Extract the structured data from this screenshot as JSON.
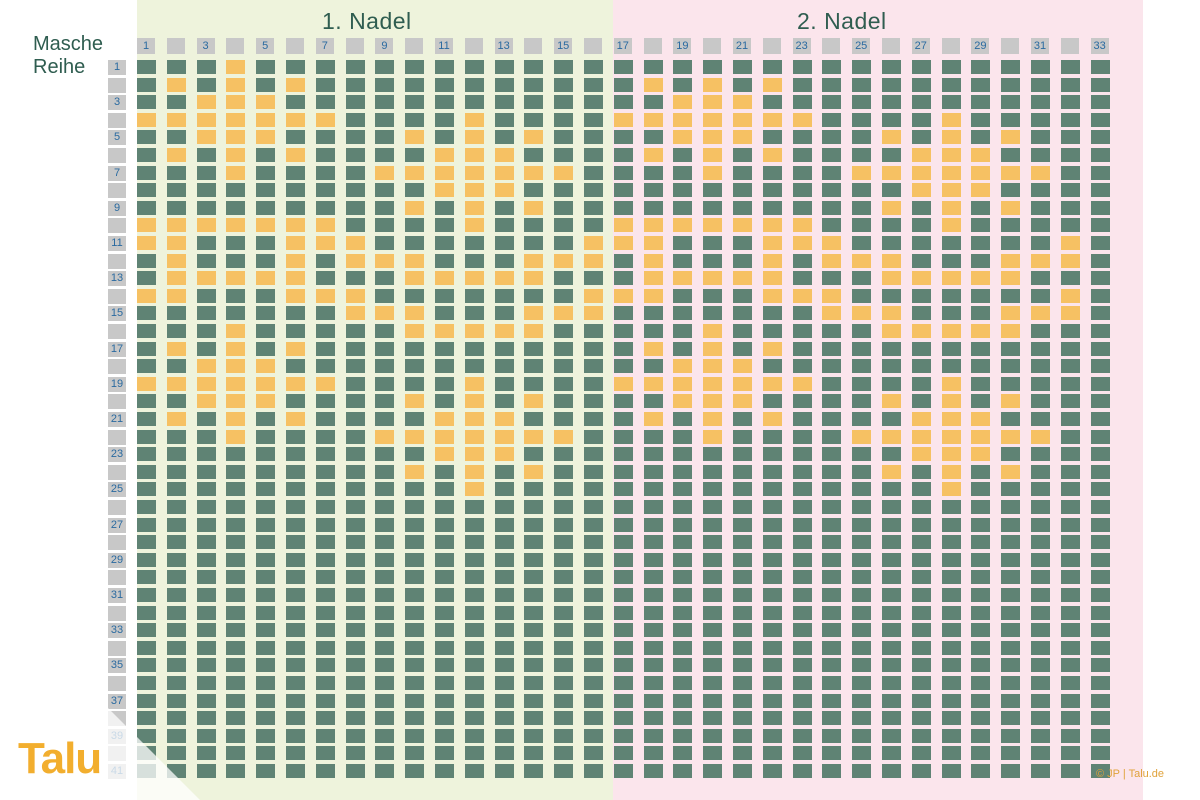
{
  "needle1_title": "1. Nadel",
  "needle2_title": "2. Nadel",
  "stitch_label": "Masche",
  "row_label": "Reihe",
  "logo": "Talu",
  "credit": "© JP | Talu.de",
  "colors": {
    "needle1_bg": "#eef3dc",
    "needle2_bg": "#fbe5ec",
    "stitch": "#5f8374",
    "highlight": "#f6c163",
    "header": "#c8c8c8"
  },
  "grid": {
    "stitch_count": 33,
    "row_count": 41,
    "stitch_numbers": [
      "1",
      "",
      "3",
      "",
      "5",
      "",
      "7",
      "",
      "9",
      "",
      "11",
      "",
      "13",
      "",
      "15",
      "",
      "17",
      "",
      "19",
      "",
      "21",
      "",
      "23",
      "",
      "25",
      "",
      "27",
      "",
      "29",
      "",
      "31",
      "",
      "33"
    ],
    "row_numbers": [
      "1",
      "",
      "3",
      "",
      "5",
      "",
      "7",
      "",
      "9",
      "",
      "11",
      "",
      "13",
      "",
      "15",
      "",
      "17",
      "",
      "19",
      "",
      "21",
      "",
      "23",
      "",
      "25",
      "",
      "27",
      "",
      "29",
      "",
      "31",
      "",
      "33",
      "",
      "35",
      "",
      "37",
      "",
      "39",
      "",
      "41"
    ],
    "highlighted": {
      "1": [
        4
      ],
      "2": [
        2,
        4,
        6,
        18,
        20,
        22
      ],
      "3": [
        3,
        4,
        5,
        19,
        20,
        21
      ],
      "4": [
        1,
        2,
        3,
        4,
        5,
        6,
        7,
        12,
        17,
        18,
        19,
        20,
        21,
        22,
        23,
        28
      ],
      "5": [
        3,
        4,
        5,
        10,
        12,
        14,
        19,
        20,
        21,
        26,
        28,
        30
      ],
      "6": [
        2,
        4,
        6,
        11,
        12,
        13,
        18,
        20,
        22,
        27,
        28,
        29
      ],
      "7": [
        4,
        9,
        10,
        11,
        12,
        13,
        14,
        15,
        20,
        25,
        26,
        27,
        28,
        29,
        30,
        31
      ],
      "8": [
        11,
        12,
        13,
        27,
        28,
        29
      ],
      "9": [
        10,
        12,
        14,
        26,
        28,
        30
      ],
      "10": [
        1,
        2,
        3,
        4,
        5,
        6,
        7,
        12,
        17,
        18,
        19,
        20,
        21,
        22,
        23,
        28
      ],
      "11": [
        1,
        2,
        6,
        7,
        8,
        16,
        17,
        18,
        22,
        23,
        24,
        32
      ],
      "12": [
        2,
        6,
        8,
        9,
        10,
        14,
        15,
        16,
        18,
        22,
        24,
        25,
        26,
        30,
        31,
        32
      ],
      "13": [
        2,
        3,
        4,
        5,
        6,
        10,
        11,
        12,
        13,
        14,
        18,
        19,
        20,
        21,
        22,
        26,
        27,
        28,
        29,
        30
      ],
      "14": [
        1,
        2,
        6,
        7,
        8,
        16,
        17,
        18,
        22,
        23,
        24,
        32
      ],
      "15": [
        8,
        9,
        10,
        14,
        15,
        16,
        24,
        25,
        26,
        30,
        31,
        32
      ],
      "16": [
        4,
        10,
        11,
        12,
        13,
        14,
        20,
        26,
        27,
        28,
        29,
        30
      ],
      "17": [
        2,
        4,
        6,
        18,
        20,
        22
      ],
      "18": [
        3,
        4,
        5,
        19,
        20,
        21
      ],
      "19": [
        1,
        2,
        3,
        4,
        5,
        6,
        7,
        12,
        17,
        18,
        19,
        20,
        21,
        22,
        23,
        28
      ],
      "20": [
        3,
        4,
        5,
        10,
        12,
        14,
        19,
        20,
        21,
        26,
        28,
        30
      ],
      "21": [
        2,
        4,
        6,
        11,
        12,
        13,
        18,
        20,
        22,
        27,
        28,
        29
      ],
      "22": [
        4,
        9,
        10,
        11,
        12,
        13,
        14,
        15,
        20,
        25,
        26,
        27,
        28,
        29,
        30,
        31
      ],
      "23": [
        11,
        12,
        13,
        27,
        28,
        29
      ],
      "24": [
        10,
        12,
        14,
        26,
        28,
        30
      ],
      "25": [
        12,
        28
      ]
    }
  }
}
